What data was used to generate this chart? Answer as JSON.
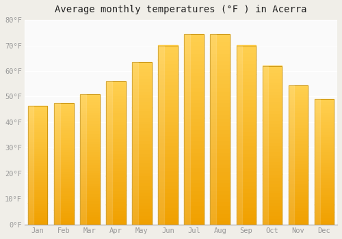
{
  "title": "Average monthly temperatures (°F ) in Acerra",
  "months": [
    "Jan",
    "Feb",
    "Mar",
    "Apr",
    "May",
    "Jun",
    "Jul",
    "Aug",
    "Sep",
    "Oct",
    "Nov",
    "Dec"
  ],
  "values": [
    46.5,
    47.5,
    51.0,
    56.0,
    63.5,
    70.0,
    74.5,
    74.5,
    70.0,
    62.0,
    54.5,
    49.0
  ],
  "bar_color_bottom": "#F0A000",
  "bar_color_top": "#FFD050",
  "bar_edge_color": "#C8900A",
  "background_color": "#F0EEE8",
  "plot_bg_color": "#FAFAFA",
  "grid_color": "#FFFFFF",
  "ylim": [
    0,
    80
  ],
  "yticks": [
    0,
    10,
    20,
    30,
    40,
    50,
    60,
    70,
    80
  ],
  "ytick_labels": [
    "0°F",
    "10°F",
    "20°F",
    "30°F",
    "40°F",
    "50°F",
    "60°F",
    "70°F",
    "80°F"
  ],
  "tick_color": "#999999",
  "title_fontsize": 10,
  "font_family": "monospace",
  "bar_width": 0.75
}
